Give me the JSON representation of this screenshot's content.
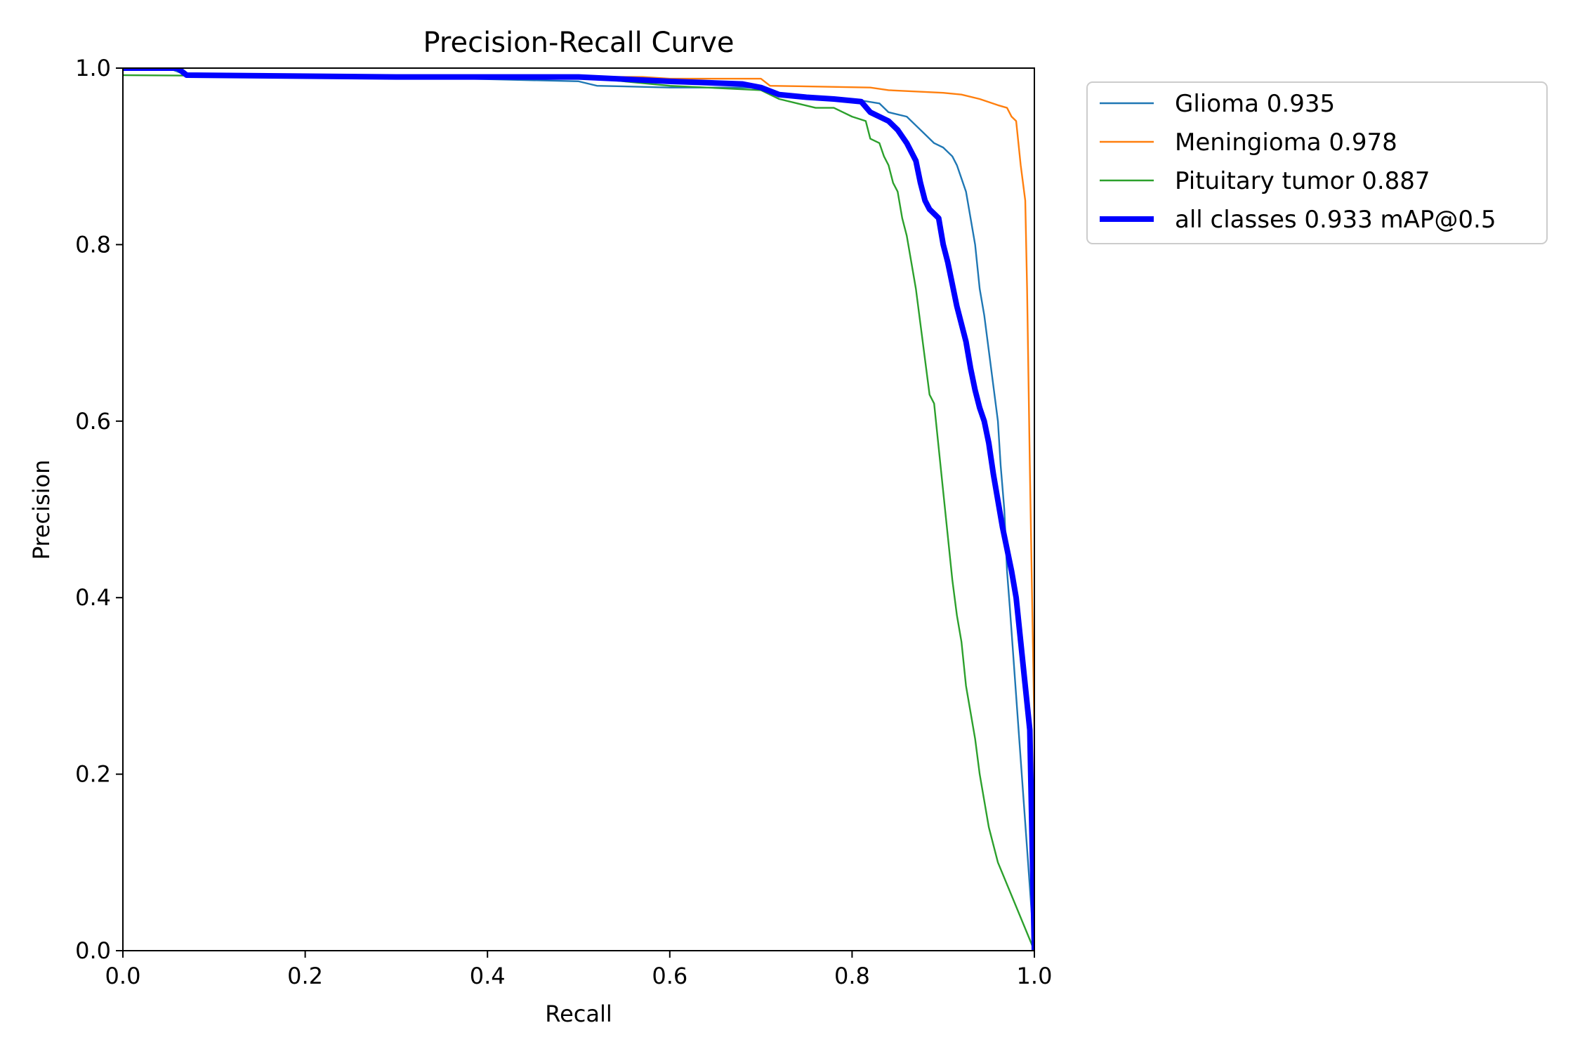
{
  "chart_data": {
    "type": "line",
    "title": "Precision-Recall Curve",
    "xlabel": "Recall",
    "ylabel": "Precision",
    "xlim": [
      0,
      1
    ],
    "ylim": [
      0,
      1
    ],
    "xticks": [
      "0.0",
      "0.2",
      "0.4",
      "0.6",
      "0.8",
      "1.0"
    ],
    "yticks": [
      "0.0",
      "0.2",
      "0.4",
      "0.6",
      "0.8",
      "1.0"
    ],
    "grid": false,
    "legend_position": "outside-top-right",
    "series": [
      {
        "name": "Glioma 0.935",
        "color": "#1f77b4",
        "style": "thin",
        "points": [
          [
            0.0,
            1.0
          ],
          [
            0.05,
            1.0
          ],
          [
            0.07,
            0.992
          ],
          [
            0.3,
            0.99
          ],
          [
            0.5,
            0.985
          ],
          [
            0.52,
            0.98
          ],
          [
            0.6,
            0.978
          ],
          [
            0.7,
            0.978
          ],
          [
            0.72,
            0.97
          ],
          [
            0.75,
            0.968
          ],
          [
            0.8,
            0.965
          ],
          [
            0.83,
            0.96
          ],
          [
            0.84,
            0.95
          ],
          [
            0.86,
            0.945
          ],
          [
            0.87,
            0.935
          ],
          [
            0.88,
            0.925
          ],
          [
            0.89,
            0.915
          ],
          [
            0.9,
            0.91
          ],
          [
            0.91,
            0.9
          ],
          [
            0.915,
            0.89
          ],
          [
            0.92,
            0.875
          ],
          [
            0.925,
            0.86
          ],
          [
            0.93,
            0.83
          ],
          [
            0.935,
            0.8
          ],
          [
            0.94,
            0.75
          ],
          [
            0.945,
            0.72
          ],
          [
            0.95,
            0.68
          ],
          [
            0.955,
            0.64
          ],
          [
            0.96,
            0.6
          ],
          [
            0.963,
            0.55
          ],
          [
            0.967,
            0.5
          ],
          [
            0.97,
            0.43
          ],
          [
            0.973,
            0.39
          ],
          [
            1.0,
            0.0
          ]
        ]
      },
      {
        "name": "Meningioma 0.978",
        "color": "#ff7f0e",
        "style": "thin",
        "points": [
          [
            0.0,
            1.0
          ],
          [
            0.06,
            1.0
          ],
          [
            0.07,
            0.993
          ],
          [
            0.3,
            0.99
          ],
          [
            0.5,
            0.99
          ],
          [
            0.57,
            0.99
          ],
          [
            0.6,
            0.988
          ],
          [
            0.7,
            0.988
          ],
          [
            0.71,
            0.98
          ],
          [
            0.82,
            0.978
          ],
          [
            0.84,
            0.975
          ],
          [
            0.9,
            0.972
          ],
          [
            0.92,
            0.97
          ],
          [
            0.94,
            0.965
          ],
          [
            0.96,
            0.958
          ],
          [
            0.97,
            0.955
          ],
          [
            0.975,
            0.945
          ],
          [
            0.98,
            0.94
          ],
          [
            0.985,
            0.89
          ],
          [
            0.99,
            0.85
          ],
          [
            0.992,
            0.75
          ],
          [
            0.995,
            0.55
          ],
          [
            1.0,
            0.25
          ],
          [
            1.0,
            0.0
          ]
        ]
      },
      {
        "name": "Pituitary tumor 0.887",
        "color": "#2ca02c",
        "style": "thin",
        "points": [
          [
            0.0,
            0.992
          ],
          [
            0.3,
            0.99
          ],
          [
            0.5,
            0.99
          ],
          [
            0.6,
            0.98
          ],
          [
            0.7,
            0.975
          ],
          [
            0.72,
            0.965
          ],
          [
            0.74,
            0.96
          ],
          [
            0.76,
            0.955
          ],
          [
            0.78,
            0.955
          ],
          [
            0.8,
            0.945
          ],
          [
            0.815,
            0.94
          ],
          [
            0.82,
            0.92
          ],
          [
            0.83,
            0.915
          ],
          [
            0.835,
            0.9
          ],
          [
            0.84,
            0.89
          ],
          [
            0.845,
            0.87
          ],
          [
            0.85,
            0.86
          ],
          [
            0.855,
            0.83
          ],
          [
            0.86,
            0.81
          ],
          [
            0.865,
            0.78
          ],
          [
            0.87,
            0.75
          ],
          [
            0.875,
            0.71
          ],
          [
            0.88,
            0.67
          ],
          [
            0.885,
            0.63
          ],
          [
            0.89,
            0.62
          ],
          [
            0.895,
            0.57
          ],
          [
            0.9,
            0.52
          ],
          [
            0.905,
            0.47
          ],
          [
            0.91,
            0.42
          ],
          [
            0.915,
            0.38
          ],
          [
            0.92,
            0.35
          ],
          [
            0.925,
            0.3
          ],
          [
            0.93,
            0.27
          ],
          [
            0.935,
            0.24
          ],
          [
            0.94,
            0.2
          ],
          [
            0.945,
            0.17
          ],
          [
            0.95,
            0.14
          ],
          [
            0.955,
            0.12
          ],
          [
            0.96,
            0.1
          ],
          [
            1.0,
            0.0
          ]
        ]
      },
      {
        "name": "all classes 0.933 mAP@0.5",
        "color": "#0000ff",
        "style": "thick",
        "points": [
          [
            0.0,
            1.0
          ],
          [
            0.06,
            1.0
          ],
          [
            0.07,
            0.992
          ],
          [
            0.3,
            0.99
          ],
          [
            0.5,
            0.99
          ],
          [
            0.6,
            0.985
          ],
          [
            0.68,
            0.982
          ],
          [
            0.7,
            0.978
          ],
          [
            0.72,
            0.97
          ],
          [
            0.75,
            0.967
          ],
          [
            0.78,
            0.965
          ],
          [
            0.81,
            0.962
          ],
          [
            0.82,
            0.95
          ],
          [
            0.84,
            0.94
          ],
          [
            0.85,
            0.93
          ],
          [
            0.86,
            0.915
          ],
          [
            0.87,
            0.895
          ],
          [
            0.875,
            0.87
          ],
          [
            0.88,
            0.85
          ],
          [
            0.885,
            0.84
          ],
          [
            0.89,
            0.835
          ],
          [
            0.895,
            0.83
          ],
          [
            0.9,
            0.8
          ],
          [
            0.905,
            0.78
          ],
          [
            0.91,
            0.755
          ],
          [
            0.915,
            0.73
          ],
          [
            0.92,
            0.71
          ],
          [
            0.925,
            0.69
          ],
          [
            0.93,
            0.66
          ],
          [
            0.935,
            0.635
          ],
          [
            0.94,
            0.615
          ],
          [
            0.945,
            0.6
          ],
          [
            0.95,
            0.575
          ],
          [
            0.955,
            0.54
          ],
          [
            0.96,
            0.51
          ],
          [
            0.965,
            0.48
          ],
          [
            0.97,
            0.455
          ],
          [
            0.975,
            0.43
          ],
          [
            0.98,
            0.4
          ],
          [
            0.985,
            0.35
          ],
          [
            0.99,
            0.3
          ],
          [
            0.995,
            0.25
          ],
          [
            1.0,
            0.0
          ]
        ]
      }
    ]
  }
}
